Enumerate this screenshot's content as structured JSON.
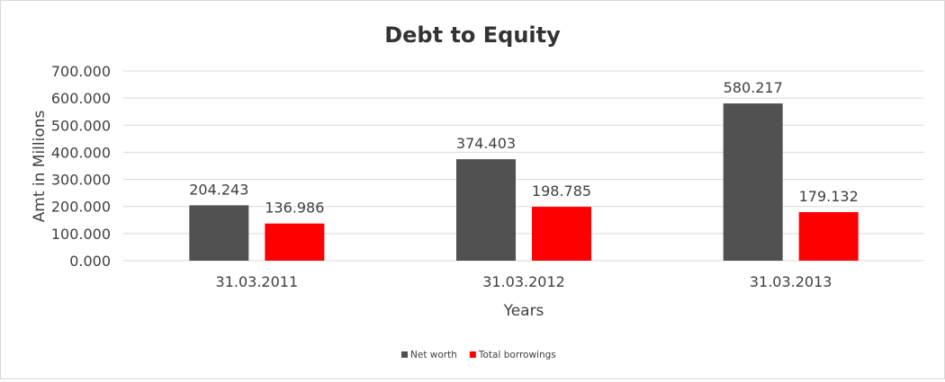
{
  "chart_data": {
    "type": "bar",
    "title": "Debt to Equity",
    "xlabel": "Years",
    "ylabel": "Amt in Millions",
    "categories": [
      "31.03.2011",
      "31.03.2012",
      "31.03.2013"
    ],
    "series": [
      {
        "name": "Net worth",
        "color": "#515151",
        "values": [
          204.243,
          374.403,
          580.217
        ],
        "labels": [
          "204.243",
          "374.403",
          "580.217"
        ]
      },
      {
        "name": "Total borrowings",
        "color": "#ff0000",
        "values": [
          136.986,
          198.785,
          179.132
        ],
        "labels": [
          "136.986",
          "198.785",
          "179.132"
        ]
      }
    ],
    "ylim": [
      0,
      700
    ],
    "yticks": [
      "0.000",
      "100.000",
      "200.000",
      "300.000",
      "400.000",
      "500.000",
      "600.000",
      "700.000"
    ],
    "grid": true,
    "legend_position": "bottom"
  }
}
